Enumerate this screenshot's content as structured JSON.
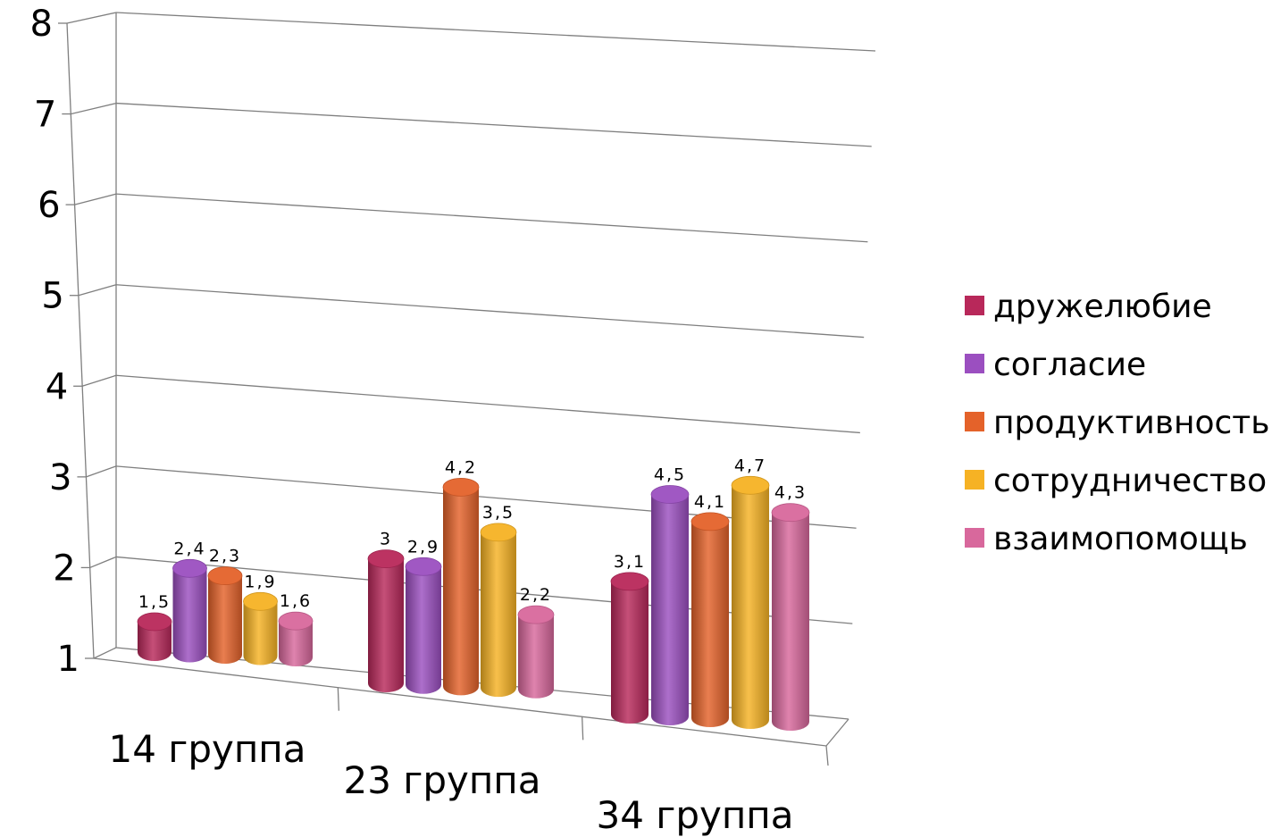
{
  "chart_data": {
    "type": "bar",
    "title": "",
    "xlabel": "",
    "ylabel": "",
    "ylim": [
      1,
      8
    ],
    "y_ticks": [
      "1",
      "2",
      "3",
      "4",
      "5",
      "6",
      "7",
      "8"
    ],
    "categories": [
      "14 группа",
      "23 группа",
      "34 группа"
    ],
    "series": [
      {
        "name": "дружелюбие",
        "values": [
          1.5,
          3.0,
          3.1
        ],
        "labels": [
          "1,5",
          "3",
          "3,1"
        ],
        "color": "#B8285A"
      },
      {
        "name": "согласие",
        "values": [
          2.4,
          2.9,
          4.5
        ],
        "labels": [
          "2,4",
          "2,9",
          "4,5"
        ],
        "color": "#9B4FC0"
      },
      {
        "name": "продуктивность",
        "values": [
          2.3,
          4.2,
          4.1
        ],
        "labels": [
          "2,3",
          "4,2",
          "4,1"
        ],
        "color": "#E4622A"
      },
      {
        "name": "сотрудничество",
        "values": [
          1.9,
          3.5,
          4.7
        ],
        "labels": [
          "1,9",
          "3,5",
          "4,7"
        ],
        "color": "#F6B224"
      },
      {
        "name": "взаимопомощь",
        "values": [
          1.6,
          2.2,
          4.3
        ],
        "labels": [
          "1,6",
          "2,2",
          "4,3"
        ],
        "color": "#D8689C"
      }
    ],
    "grid": true,
    "legend_position": "right",
    "style": "3d-cylinder"
  }
}
